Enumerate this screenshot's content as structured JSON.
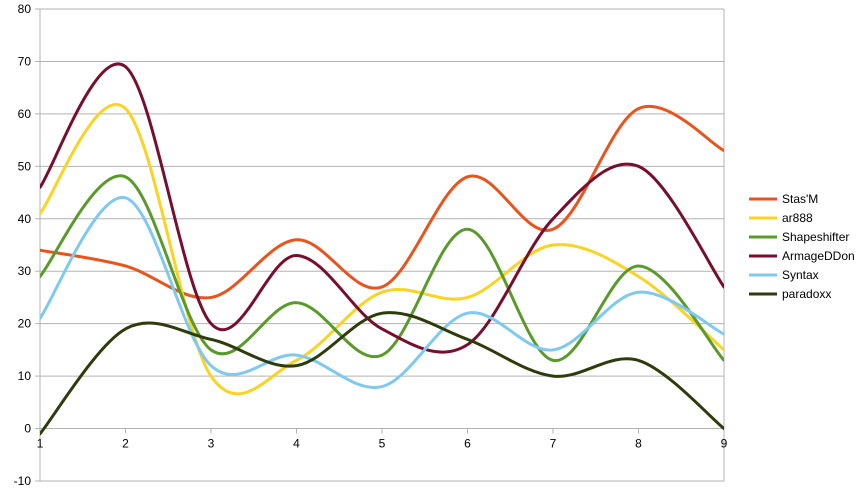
{
  "chart_data": {
    "type": "line",
    "smooth": true,
    "x": [
      1,
      2,
      3,
      4,
      5,
      6,
      7,
      8,
      9
    ],
    "xlim": [
      1,
      9
    ],
    "ylim": [
      -10,
      80
    ],
    "y_ticks": [
      -10,
      0,
      10,
      20,
      30,
      40,
      50,
      60,
      70,
      80
    ],
    "x_ticks": [
      1,
      2,
      3,
      4,
      5,
      6,
      7,
      8,
      9
    ],
    "grid": "horizontal",
    "legend_position": "right",
    "series": [
      {
        "name": "Stas'M",
        "color": "#e8541e",
        "values": [
          34,
          31,
          25,
          36,
          27,
          48,
          38,
          61,
          53
        ]
      },
      {
        "name": "ar888",
        "color": "#f9d326",
        "values": [
          41,
          61,
          10,
          13,
          26,
          25,
          35,
          29,
          15
        ]
      },
      {
        "name": "Shapeshifter",
        "color": "#5a9a2b",
        "values": [
          29,
          48,
          15,
          24,
          14,
          38,
          13,
          31,
          13
        ]
      },
      {
        "name": "ArmageDDon",
        "color": "#780e2e",
        "values": [
          46,
          69,
          20,
          33,
          19,
          16,
          40,
          50,
          27
        ]
      },
      {
        "name": "Syntax",
        "color": "#7fc9f0",
        "values": [
          21,
          44,
          12,
          14,
          8,
          22,
          15,
          26,
          18
        ]
      },
      {
        "name": "paradoxx",
        "color": "#2e3b0c",
        "values": [
          -1,
          19,
          17,
          12,
          22,
          17,
          10,
          13,
          0
        ]
      }
    ]
  }
}
